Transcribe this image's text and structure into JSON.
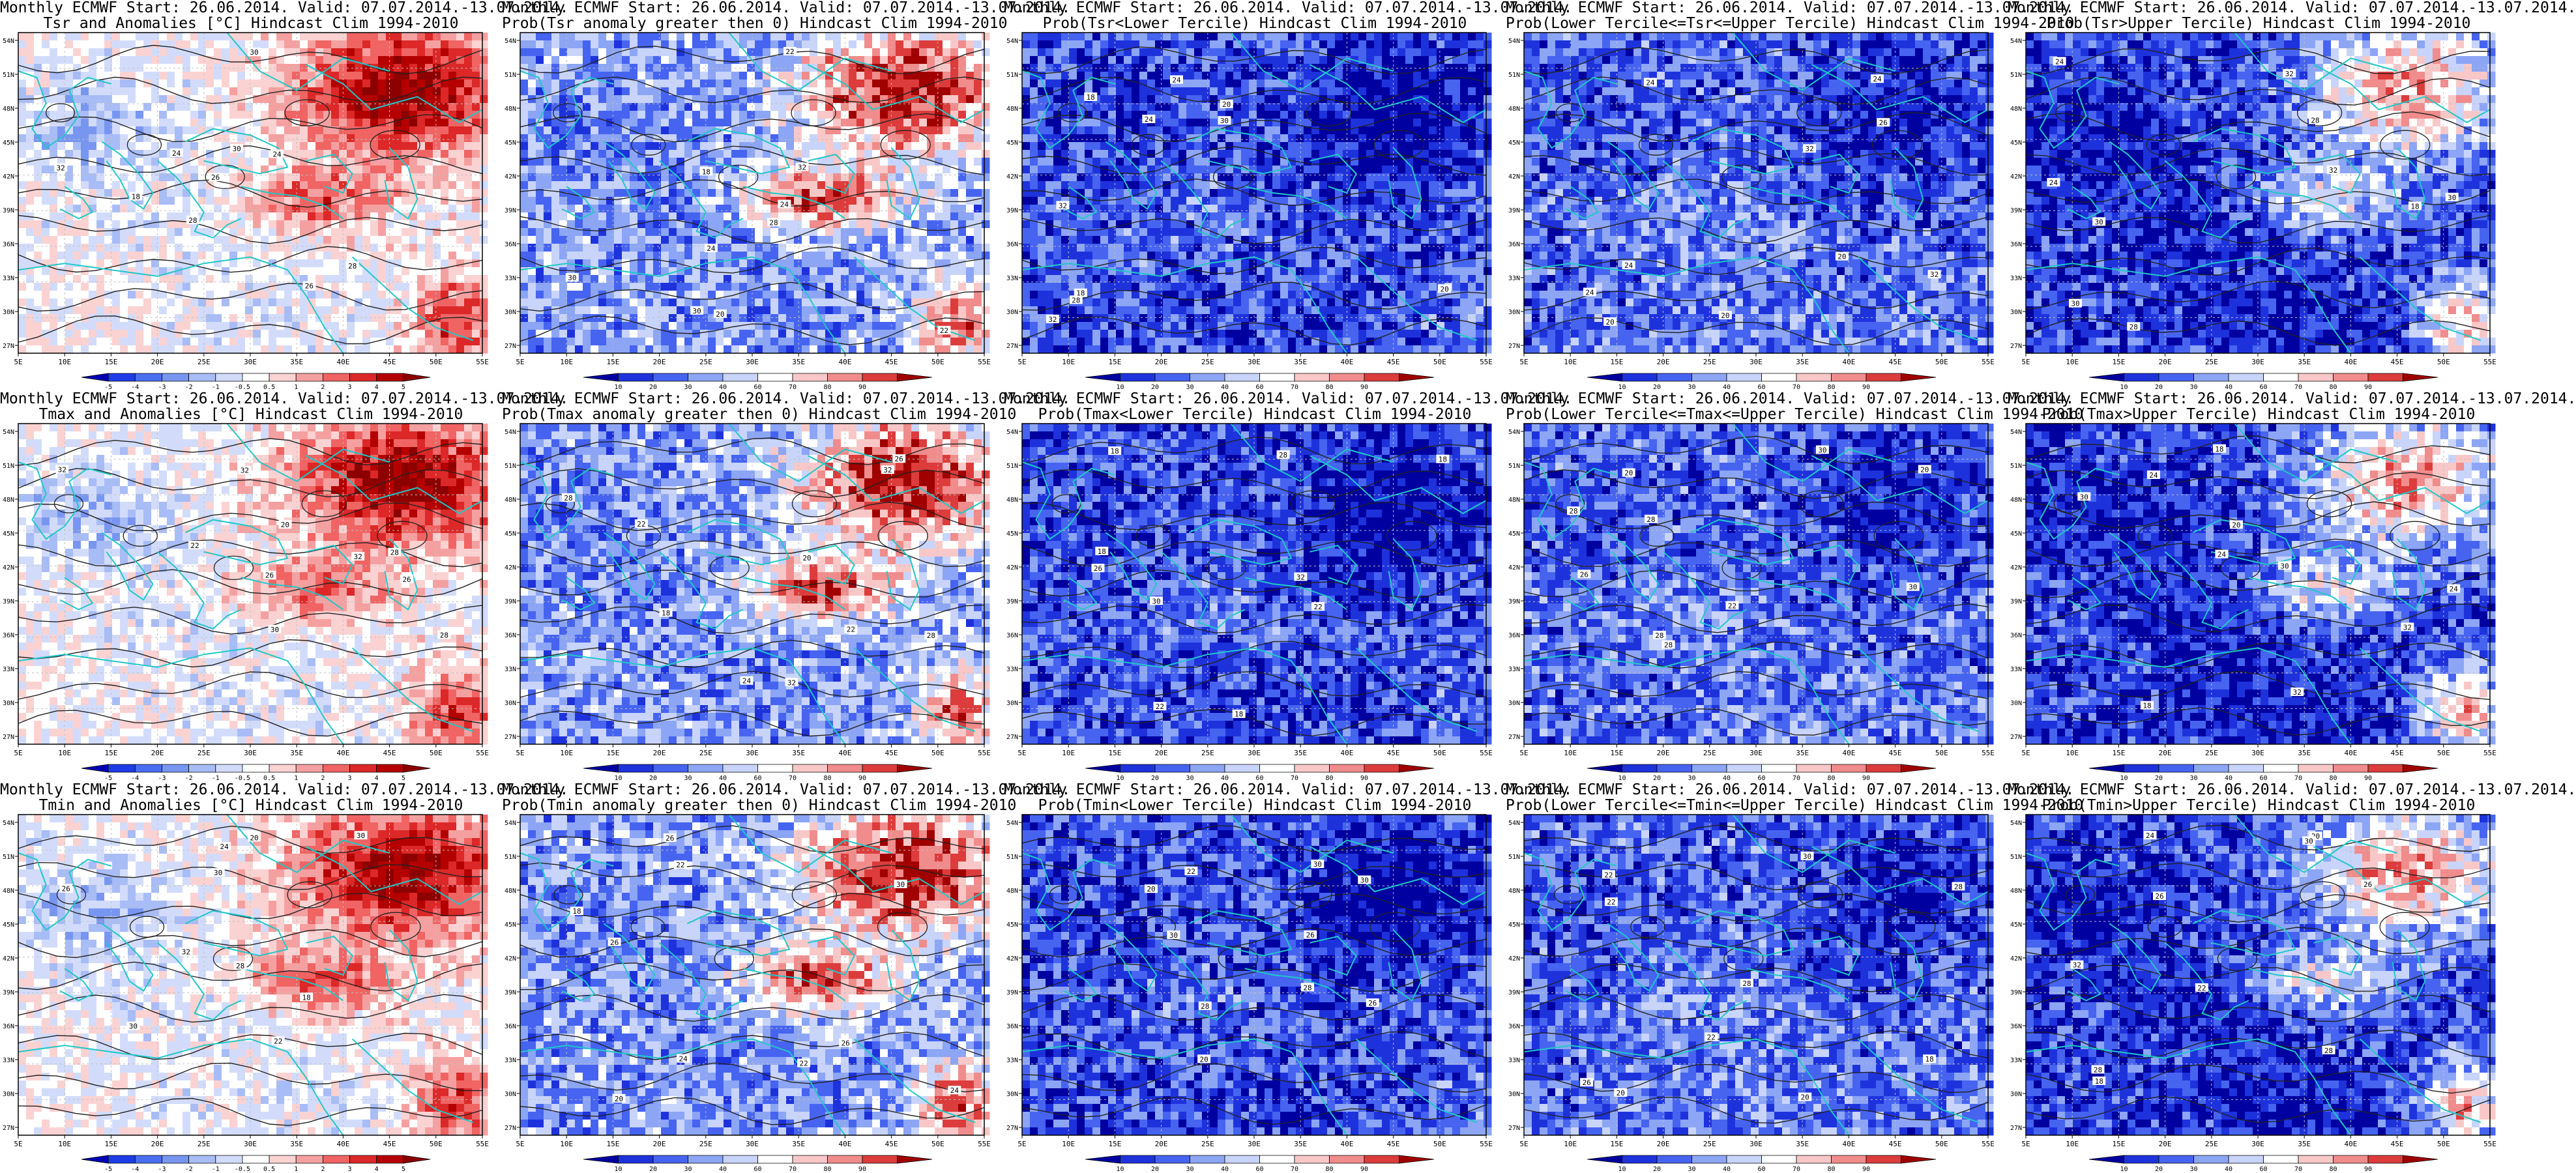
{
  "panels": [
    {
      "title_line1": "Monthly ECMWF Start: 26.06.2014. Valid: 07.07.2014.-13.07.2014.",
      "title_line2": "Tsr and Anomalies [°C] Hindcast Clim 1994-2010",
      "variable": "Tsr",
      "product": "anomaly"
    },
    {
      "title_line1": "Monthly ECMWF Start: 26.06.2014. Valid: 07.07.2014.-13.07.2014.",
      "title_line2": "Prob(Tsr anomaly greater then 0) Hindcast Clim 1994-2010",
      "variable": "Tsr",
      "product": "prob_gt0"
    },
    {
      "title_line1": "Monthly ECMWF Start: 26.06.2014. Valid: 07.07.2014.-13.07.2014.",
      "title_line2": "Prob(Tsr<Lower Tercile) Hindcast Clim 1994-2010",
      "variable": "Tsr",
      "product": "prob_lower"
    },
    {
      "title_line1": "Monthly ECMWF Start: 26.06.2014. Valid: 07.07.2014.-13.07.2014.",
      "title_line2": "Prob(Lower Tercile<=Tsr<=Upper Tercile) Hindcast Clim 1994-2010",
      "variable": "Tsr",
      "product": "prob_middle"
    },
    {
      "title_line1": "Monthly ECMWF Start: 26.06.2014. Valid: 07.07.2014.-13.07.2014.",
      "title_line2": "Prob(Tsr>Upper Tercile) Hindcast Clim 1994-2010",
      "variable": "Tsr",
      "product": "prob_upper"
    },
    {
      "title_line1": "Monthly ECMWF Start: 26.06.2014. Valid: 07.07.2014.-13.07.2014.",
      "title_line2": "Tmax and Anomalies [°C] Hindcast Clim 1994-2010",
      "variable": "Tmax",
      "product": "anomaly"
    },
    {
      "title_line1": "Monthly ECMWF Start: 26.06.2014. Valid: 07.07.2014.-13.07.2014.",
      "title_line2": "Prob(Tmax anomaly greater then 0) Hindcast Clim 1994-2010",
      "variable": "Tmax",
      "product": "prob_gt0"
    },
    {
      "title_line1": "Monthly ECMWF Start: 26.06.2014. Valid: 07.07.2014.-13.07.2014.",
      "title_line2": "Prob(Tmax<Lower Tercile) Hindcast Clim 1994-2010",
      "variable": "Tmax",
      "product": "prob_lower"
    },
    {
      "title_line1": "Monthly ECMWF Start: 26.06.2014. Valid: 07.07.2014.-13.07.2014.",
      "title_line2": "Prob(Lower Tercile<=Tmax<=Upper Tercile) Hindcast Clim 1994-2010",
      "variable": "Tmax",
      "product": "prob_middle"
    },
    {
      "title_line1": "Monthly ECMWF Start: 26.06.2014. Valid: 07.07.2014.-13.07.2014.",
      "title_line2": "Prob(Tmax>Upper Tercile) Hindcast Clim 1994-2010",
      "variable": "Tmax",
      "product": "prob_upper"
    },
    {
      "title_line1": "Monthly ECMWF Start: 26.06.2014. Valid: 07.07.2014.-13.07.2014.",
      "title_line2": "Tmin and Anomalies [°C] Hindcast Clim 1994-2010",
      "variable": "Tmin",
      "product": "anomaly"
    },
    {
      "title_line1": "Monthly ECMWF Start: 26.06.2014. Valid: 07.07.2014.-13.07.2014.",
      "title_line2": "Prob(Tmin anomaly greater then 0) Hindcast Clim 1994-2010",
      "variable": "Tmin",
      "product": "prob_gt0"
    },
    {
      "title_line1": "Monthly ECMWF Start: 26.06.2014. Valid: 07.07.2014.-13.07.2014.",
      "title_line2": "Prob(Tmin<Lower Tercile) Hindcast Clim 1994-2010",
      "variable": "Tmin",
      "product": "prob_lower"
    },
    {
      "title_line1": "Monthly ECMWF Start: 26.06.2014. Valid: 07.07.2014.-13.07.2014.",
      "title_line2": "Prob(Lower Tercile<=Tmin<=Upper Tercile) Hindcast Clim 1994-2010",
      "variable": "Tmin",
      "product": "prob_middle"
    },
    {
      "title_line1": "Monthly ECMWF Start: 26.06.2014. Valid: 07.07.2014.-13.07.2014.",
      "title_line2": "Prob(Tmin>Upper Tercile) Hindcast Clim 1994-2010",
      "variable": "Tmin",
      "product": "prob_upper"
    }
  ],
  "axes": {
    "lon_labels": [
      "5E",
      "10E",
      "15E",
      "20E",
      "25E",
      "30E",
      "35E",
      "40E",
      "45E",
      "50E",
      "55E"
    ],
    "lat_labels": [
      "54N",
      "51N",
      "48N",
      "45N",
      "42N",
      "39N",
      "36N",
      "33N",
      "30N",
      "27N"
    ]
  },
  "colorbars": {
    "anomaly_ticks": [
      "-5",
      "-4",
      "-3",
      "-2",
      "-1",
      "-0.5",
      "0.5",
      "1",
      "2",
      "3",
      "4",
      "5"
    ],
    "prob_ticks": [
      "10",
      "20",
      "30",
      "40",
      "60",
      "70",
      "80",
      "90"
    ],
    "anomaly_colors": [
      "#0000b4",
      "#1e3ce6",
      "#4a6ef0",
      "#7896f0",
      "#a8bcf5",
      "#d2dcfa",
      "#ffffff",
      "#fad2d2",
      "#f5a0a0",
      "#f06464",
      "#dc2828",
      "#b40000",
      "#8c0000"
    ],
    "prob_colors": [
      "#0000a0",
      "#1e32dc",
      "#4664f0",
      "#8ca5f5",
      "#c8d4fa",
      "#ffffff",
      "#f8c8c8",
      "#f08c8c",
      "#dc3c3c",
      "#a00000"
    ]
  },
  "contour_labels": [
    "18",
    "20",
    "22",
    "24",
    "26",
    "28",
    "30",
    "32"
  ],
  "map_colors": {
    "coast": "#20c8c8",
    "contour": "#222222",
    "frame": "#000000",
    "grid": "#c0c0c0"
  }
}
